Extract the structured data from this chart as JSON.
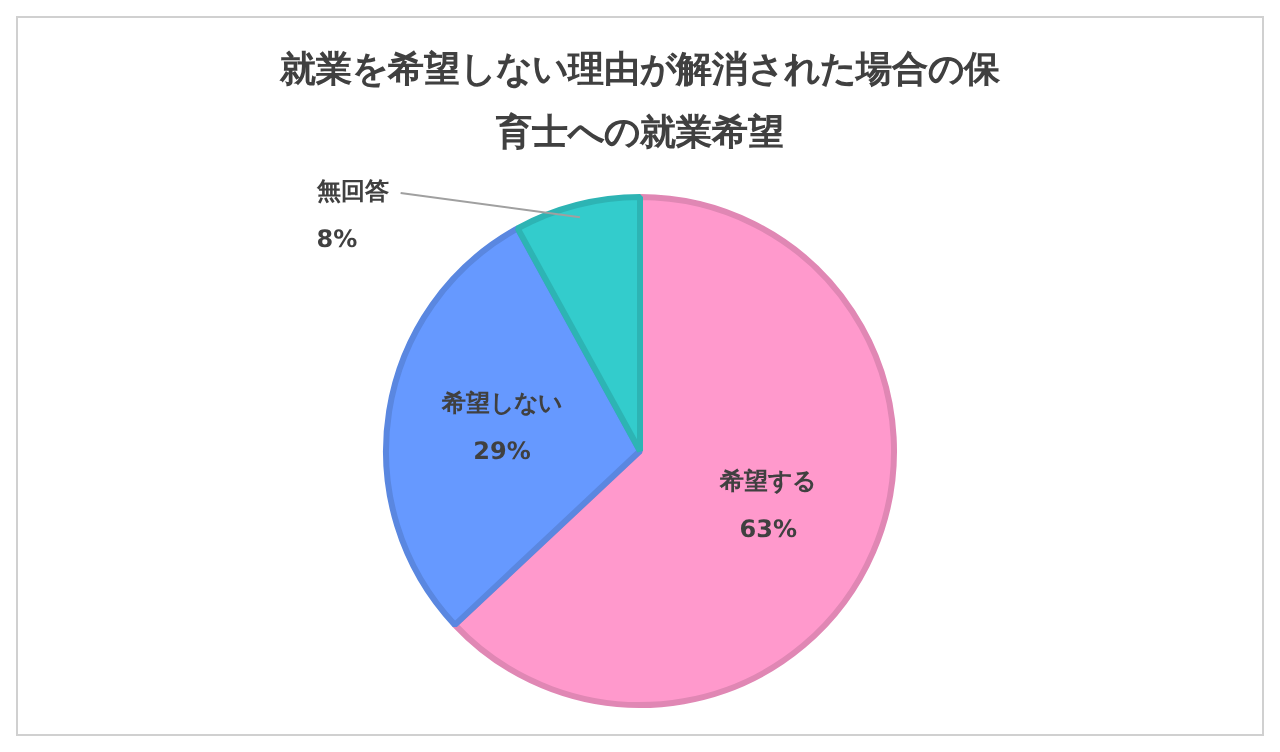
{
  "chart_data": {
    "type": "pie",
    "title": "就業を希望しない理由が解消された場合の保育士への就業希望",
    "categories": [
      "希望する",
      "希望しない",
      "無回答"
    ],
    "values": [
      63,
      29,
      8
    ],
    "colors": [
      "#ff99cc",
      "#6699ff",
      "#33cccc"
    ],
    "value_labels": [
      "63%",
      "29%",
      "8%"
    ],
    "legend": false
  }
}
